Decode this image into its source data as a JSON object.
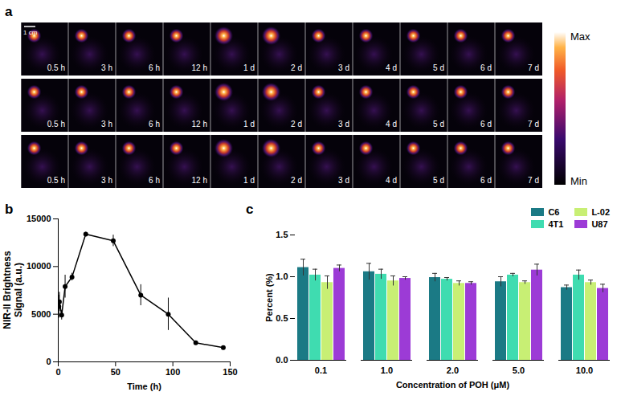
{
  "chart_data": [
    {
      "type": "image_grid",
      "panel_label": "a",
      "rows": 3,
      "time_labels": [
        "0.5 h",
        "3 h",
        "6 h",
        "12 h",
        "1 d",
        "2 d",
        "3 d",
        "4 d",
        "5 d",
        "6 d",
        "7 d"
      ],
      "scale_bar": "1 cm",
      "colorbar": {
        "max_label": "Max",
        "min_label": "Min"
      }
    },
    {
      "type": "line",
      "panel_label": "b",
      "x": [
        0.5,
        1,
        3,
        6,
        12,
        24,
        48,
        72,
        96,
        120,
        144
      ],
      "values": [
        5800,
        6300,
        4900,
        7900,
        8900,
        13400,
        12700,
        7000,
        5000,
        2000,
        1500
      ],
      "errors": [
        1200,
        1000,
        500,
        1200,
        400,
        200,
        600,
        1100,
        1700,
        200,
        100
      ],
      "color": "#000000",
      "marker": "circle",
      "xlabel": "Time (h)",
      "ylabel": "NIR-II Brightness Signal (a.u.)",
      "xlim": [
        0,
        150
      ],
      "xticks": [
        0,
        50,
        100,
        150
      ],
      "ylim": [
        0,
        15000
      ],
      "yticks": [
        0,
        5000,
        10000,
        15000
      ]
    },
    {
      "type": "bar",
      "panel_label": "c",
      "categories": [
        "0.1",
        "1.0",
        "2.0",
        "5.0",
        "10.0"
      ],
      "series": [
        {
          "name": "C6",
          "color": "#1b7a85",
          "values": [
            1.11,
            1.06,
            0.99,
            0.94,
            0.87
          ],
          "errors": [
            0.1,
            0.1,
            0.05,
            0.06,
            0.03
          ]
        },
        {
          "name": "4T1",
          "color": "#3fdcb0",
          "values": [
            1.02,
            1.03,
            0.97,
            1.02,
            1.02
          ],
          "errors": [
            0.07,
            0.06,
            0.02,
            0.02,
            0.06
          ]
        },
        {
          "name": "L-02",
          "color": "#c8ef74",
          "values": [
            0.93,
            0.95,
            0.92,
            0.93,
            0.93
          ],
          "errors": [
            0.08,
            0.06,
            0.03,
            0.02,
            0.03
          ]
        },
        {
          "name": "U87",
          "color": "#9c3bd6",
          "values": [
            1.1,
            0.98,
            0.92,
            1.08,
            0.86
          ],
          "errors": [
            0.04,
            0.02,
            0.02,
            0.07,
            0.05
          ]
        }
      ],
      "xlabel": "Concentration of POH (μM)",
      "ylabel": "Percent (%)",
      "ylim": [
        0,
        1.5
      ],
      "yticks": [
        {
          "value": 0,
          "label": "0.0"
        },
        0.5,
        {
          "value": 1,
          "label": "1.0"
        },
        1.5
      ],
      "legend": "top-right"
    }
  ]
}
